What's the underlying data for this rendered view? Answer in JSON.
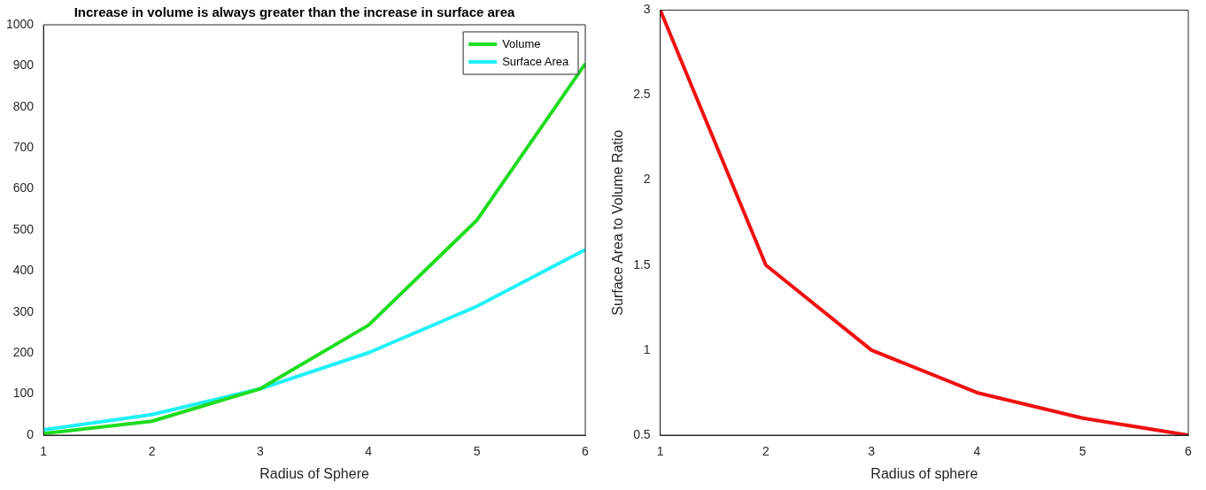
{
  "chart_data": [
    {
      "type": "line",
      "title": "Increase in volume is always greater than the increase in surface area",
      "xlabel": "Radius of Sphere",
      "x": [
        1,
        2,
        3,
        4,
        5,
        6
      ],
      "xlim": [
        1,
        6
      ],
      "xticks": [
        1,
        2,
        3,
        4,
        5,
        6
      ],
      "ylim": [
        0,
        1000
      ],
      "yticks": [
        0,
        100,
        200,
        300,
        400,
        500,
        600,
        700,
        800,
        900,
        1000
      ],
      "grid": false,
      "legend": "top right",
      "marker": "none",
      "line_style": "solid",
      "series": [
        {
          "name": "Volume",
          "color": "#1fdc1f",
          "values": [
            4,
            34,
            113,
            268,
            524,
            905
          ]
        },
        {
          "name": "Surface Area",
          "color": "#1ff0f8",
          "values": [
            13,
            50,
            113,
            201,
            314,
            452
          ]
        }
      ]
    },
    {
      "type": "line",
      "xlabel": "Radius of sphere",
      "ylabel": "Surface Area to Volume Ratio",
      "x": [
        1,
        2,
        3,
        4,
        5,
        6
      ],
      "xlim": [
        1,
        6
      ],
      "xticks": [
        1,
        2,
        3,
        4,
        5,
        6
      ],
      "ylim": [
        0.5,
        3
      ],
      "yticks": [
        0.5,
        1,
        1.5,
        2,
        2.5,
        3
      ],
      "grid": false,
      "legend": false,
      "marker": "none",
      "line_style": "solid",
      "series": [
        {
          "color": "#f01010",
          "values": [
            3,
            1.5,
            1,
            0.75,
            0.6,
            0.5
          ]
        }
      ]
    }
  ]
}
